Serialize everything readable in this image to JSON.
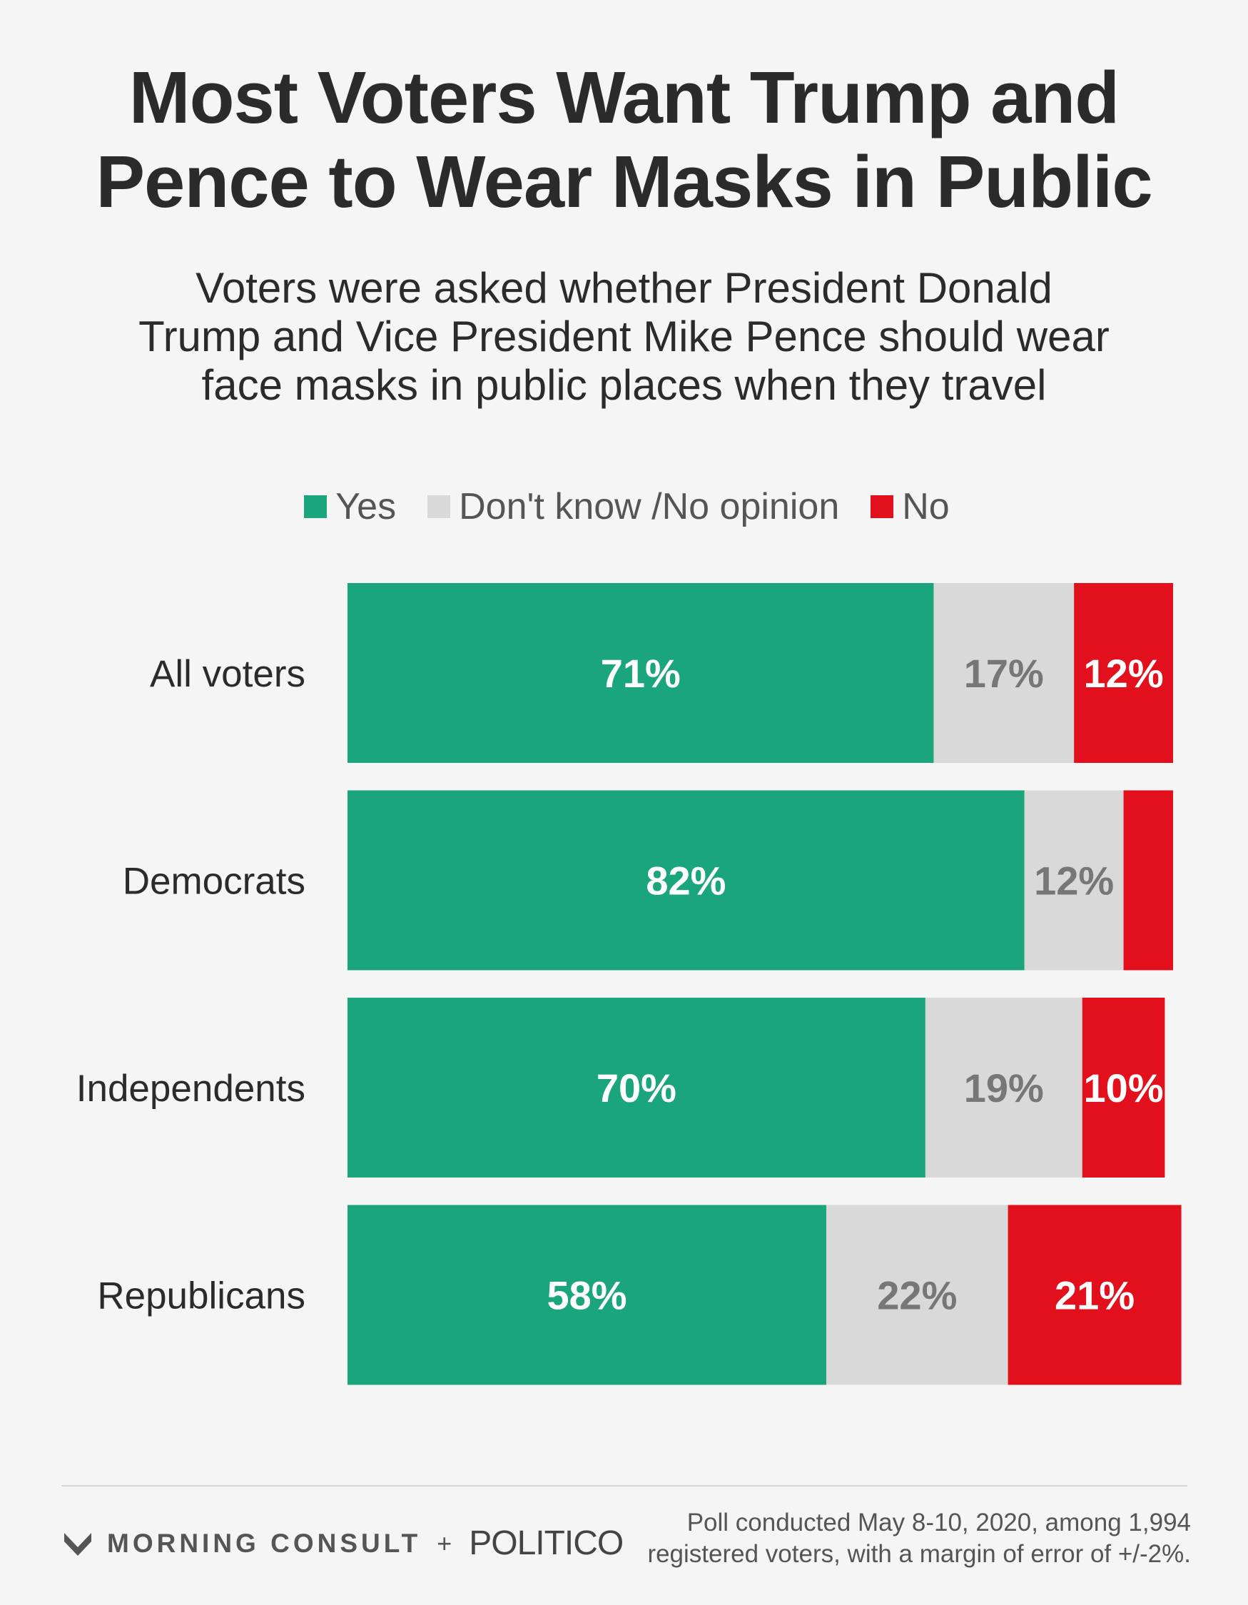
{
  "title_lines": [
    "Most Voters Want Trump and",
    "Pence to Wear Masks in Public"
  ],
  "subtitle_lines": [
    "Voters were asked whether President Donald",
    "Trump and Vice President Mike Pence should wear",
    "face masks in public places when they travel"
  ],
  "legend": [
    {
      "label": "Yes",
      "color": "#1ba57c"
    },
    {
      "label": "Don't know /No opinion",
      "color": "#d9d9d9"
    },
    {
      "label": "No",
      "color": "#e1101c"
    }
  ],
  "chart_data": {
    "type": "bar",
    "orientation": "horizontal-stacked-100",
    "categories": [
      "All voters",
      "Democrats",
      "Independents",
      "Republicans"
    ],
    "series": [
      {
        "name": "Yes",
        "values": [
          71,
          82,
          70,
          58
        ],
        "color": "#1ba57c",
        "label_color": "#ffffff"
      },
      {
        "name": "Don't know /No opinion",
        "values": [
          17,
          12,
          19,
          22
        ],
        "color": "#d9d9d9",
        "label_color": "#777777"
      },
      {
        "name": "No",
        "values": [
          12,
          6,
          10,
          21
        ],
        "color": "#e1101c",
        "label_color": "#ffffff"
      }
    ],
    "data_labels": [
      [
        "71%",
        "17%",
        "12%"
      ],
      [
        "82%",
        "12%",
        ""
      ],
      [
        "70%",
        "19%",
        "10%"
      ],
      [
        "58%",
        "22%",
        "21%"
      ]
    ],
    "xlim": [
      0,
      100
    ],
    "legend_position": "top",
    "grid": false
  },
  "footer": {
    "brand": "MORNING CONSULT",
    "plus": "+",
    "partner": "POLITICO",
    "note_lines": [
      "Poll conducted May 8-10, 2020, among 1,994",
      "registered voters, with a margin of error of +/-2%."
    ]
  }
}
